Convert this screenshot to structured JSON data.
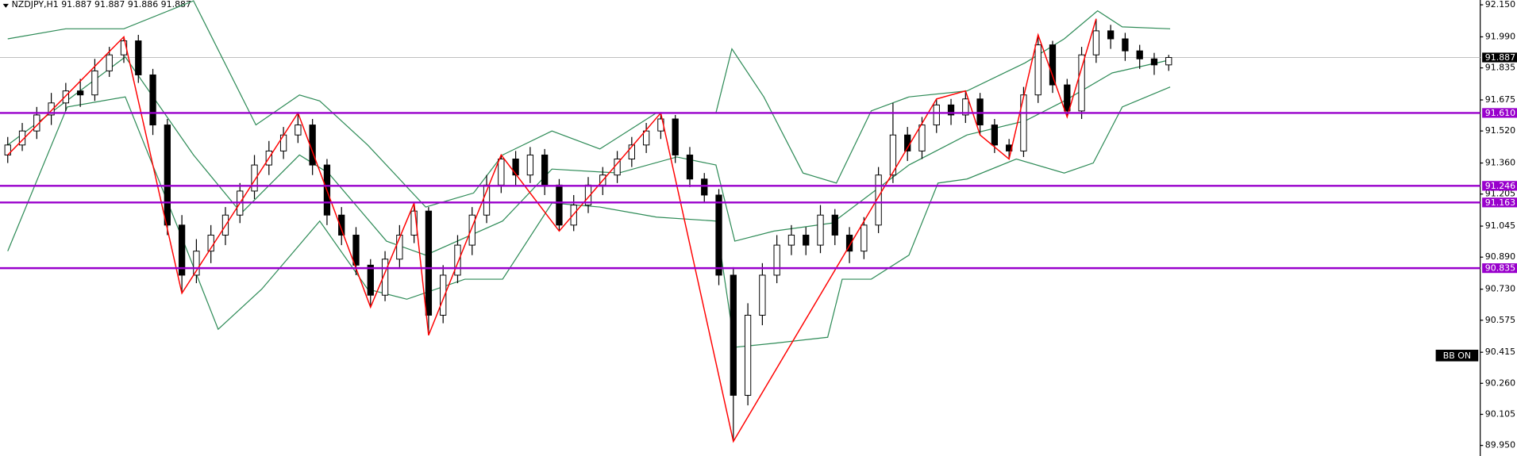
{
  "chart_data": {
    "type": "candlestick",
    "title": "NZDJPY,H1  91.887 91.887 91.886 91.887",
    "button": "BB ON",
    "ylim": [
      89.897,
      92.174
    ],
    "yticks": [
      {
        "value": 92.15,
        "label": "92.150"
      },
      {
        "value": 91.99,
        "label": "91.990"
      },
      {
        "value": 91.835,
        "label": "91.835"
      },
      {
        "value": 91.675,
        "label": "91.675"
      },
      {
        "value": 91.52,
        "label": "91.520"
      },
      {
        "value": 91.36,
        "label": "91.360"
      },
      {
        "value": 91.205,
        "label": "91.205"
      },
      {
        "value": 91.045,
        "label": "91.045"
      },
      {
        "value": 90.89,
        "label": "90.890"
      },
      {
        "value": 90.73,
        "label": "90.730"
      },
      {
        "value": 90.575,
        "label": "90.575"
      },
      {
        "value": 90.415,
        "label": "90.415"
      },
      {
        "value": 90.26,
        "label": "90.260"
      },
      {
        "value": 90.105,
        "label": "90.105"
      },
      {
        "value": 89.95,
        "label": "89.950"
      }
    ],
    "up_color": "#ffffff",
    "down_color": "#000000",
    "open": [
      91.4,
      91.45,
      91.52,
      91.6,
      91.66,
      91.72,
      91.7,
      91.82,
      91.9,
      91.97,
      91.8,
      91.55,
      91.05,
      90.8,
      90.92,
      91.0,
      91.1,
      91.22,
      91.35,
      91.42,
      91.5,
      91.55,
      91.35,
      91.1,
      91.0,
      90.85,
      90.7,
      90.88,
      91.0,
      91.12,
      90.6,
      90.8,
      90.95,
      91.1,
      91.25,
      91.38,
      91.3,
      91.4,
      91.25,
      91.05,
      91.15,
      91.25,
      91.3,
      91.38,
      91.45,
      91.52,
      91.58,
      91.4,
      91.28,
      91.2,
      90.8,
      90.2,
      90.6,
      90.8,
      90.95,
      91.0,
      90.95,
      91.1,
      91.0,
      90.92,
      91.05,
      91.3,
      91.5,
      91.42,
      91.55,
      91.65,
      91.6,
      91.68,
      91.55,
      91.45,
      91.42,
      91.7,
      91.95,
      91.75,
      91.62,
      91.9,
      92.02,
      91.98,
      91.92,
      91.88,
      91.85
    ],
    "high": [
      91.49,
      91.56,
      91.64,
      91.71,
      91.76,
      91.78,
      91.88,
      91.94,
      91.99,
      92.0,
      91.83,
      91.58,
      91.1,
      90.98,
      91.05,
      91.14,
      91.26,
      91.4,
      91.47,
      91.54,
      91.61,
      91.58,
      91.38,
      91.14,
      91.04,
      90.88,
      90.92,
      91.05,
      91.16,
      91.14,
      90.85,
      91.0,
      91.14,
      91.3,
      91.4,
      91.42,
      91.44,
      91.43,
      91.28,
      91.2,
      91.29,
      91.34,
      91.42,
      91.49,
      91.56,
      91.61,
      91.6,
      91.44,
      91.31,
      91.23,
      90.84,
      90.66,
      90.86,
      91.0,
      91.05,
      91.04,
      91.15,
      91.13,
      91.04,
      91.09,
      91.34,
      91.66,
      91.54,
      91.59,
      91.68,
      91.68,
      91.72,
      91.71,
      91.58,
      91.48,
      91.74,
      92.0,
      91.97,
      91.78,
      91.94,
      92.08,
      92.05,
      92.01,
      91.95,
      91.91,
      91.9
    ],
    "low": [
      91.36,
      91.42,
      91.48,
      91.55,
      91.62,
      91.64,
      91.67,
      91.79,
      91.86,
      91.76,
      91.5,
      91.0,
      90.71,
      90.76,
      90.86,
      90.95,
      91.06,
      91.18,
      91.3,
      91.38,
      91.46,
      91.3,
      91.05,
      90.95,
      90.8,
      90.64,
      90.67,
      90.84,
      90.96,
      90.5,
      90.56,
      90.76,
      90.9,
      91.06,
      91.21,
      91.25,
      91.26,
      91.2,
      91.02,
      91.02,
      91.11,
      91.2,
      91.26,
      91.34,
      91.41,
      91.48,
      91.36,
      91.24,
      91.16,
      90.75,
      89.97,
      90.15,
      90.55,
      90.76,
      90.9,
      90.9,
      90.91,
      90.95,
      90.86,
      90.88,
      91.01,
      91.26,
      91.37,
      91.38,
      91.51,
      91.55,
      91.56,
      91.5,
      91.41,
      91.38,
      91.39,
      91.66,
      91.71,
      91.59,
      91.58,
      91.86,
      91.93,
      91.87,
      91.83,
      91.8,
      91.82
    ],
    "close": [
      91.45,
      91.52,
      91.6,
      91.66,
      91.72,
      91.7,
      91.82,
      91.9,
      91.97,
      91.8,
      91.55,
      91.05,
      90.8,
      90.92,
      91.0,
      91.1,
      91.22,
      91.35,
      91.42,
      91.5,
      91.55,
      91.35,
      91.1,
      91.0,
      90.85,
      90.7,
      90.88,
      91.0,
      91.12,
      90.6,
      90.8,
      90.95,
      91.1,
      91.25,
      91.38,
      91.3,
      91.4,
      91.25,
      91.05,
      91.15,
      91.25,
      91.3,
      91.38,
      91.45,
      91.52,
      91.58,
      91.4,
      91.28,
      91.2,
      90.8,
      90.2,
      90.6,
      90.8,
      90.95,
      91.0,
      90.95,
      91.1,
      91.0,
      90.92,
      91.05,
      91.3,
      91.5,
      91.42,
      91.55,
      91.65,
      91.6,
      91.68,
      91.55,
      91.45,
      91.42,
      91.7,
      91.95,
      91.75,
      91.62,
      91.9,
      92.02,
      91.98,
      91.92,
      91.88,
      91.85,
      91.887
    ],
    "bands": [
      {
        "color": "#2e8b57",
        "x": [
          0,
          4,
          8,
          12.8,
          17.1,
          20.1,
          21.5,
          24.8,
          28.8,
          32.1,
          34.1,
          37.5,
          40.8,
          44.7,
          48.8,
          49.9,
          52.1,
          54.8,
          57.1,
          59.5,
          62.1,
          66.1,
          70.1,
          72.8,
          75.1,
          76.8,
          80.1
        ],
        "values": [
          91.98,
          92.03,
          92.03,
          92.17,
          91.55,
          91.7,
          91.67,
          91.45,
          91.14,
          91.21,
          91.4,
          91.52,
          91.43,
          91.61,
          91.61,
          91.93,
          91.69,
          91.31,
          91.26,
          91.62,
          91.69,
          91.72,
          91.86,
          91.98,
          92.12,
          92.04,
          92.03
        ]
      },
      {
        "color": "#2e8b57",
        "x": [
          0,
          8.1,
          12.8,
          16.1,
          20.1,
          22.1,
          26.1,
          28.8,
          34.1,
          37.5,
          42.1,
          46.1,
          48.8,
          50.1,
          52.8,
          56.8,
          62.1,
          66.1,
          70.1,
          72.8,
          76.1,
          80.1
        ],
        "values": [
          91.45,
          91.89,
          91.4,
          91.11,
          91.4,
          91.31,
          90.97,
          90.9,
          91.07,
          91.33,
          91.31,
          91.39,
          91.35,
          90.97,
          91.02,
          91.06,
          91.35,
          91.5,
          91.57,
          91.67,
          91.81,
          91.875
        ]
      },
      {
        "color": "#2e8b57",
        "x": [
          0,
          4.1,
          8.1,
          12.1,
          14.5,
          17.5,
          21.5,
          24.8,
          27.5,
          31.5,
          34.1,
          37.5,
          40.8,
          44.7,
          48.8,
          50.1,
          52.8,
          56.5,
          57.5,
          59.5,
          62.1,
          64.1,
          66.1,
          69.5,
          72.8,
          74.8,
          76.8,
          80.1
        ],
        "values": [
          90.92,
          91.64,
          91.69,
          90.97,
          90.53,
          90.73,
          91.07,
          90.73,
          90.68,
          90.78,
          90.78,
          91.16,
          91.14,
          91.09,
          91.07,
          90.44,
          90.46,
          90.49,
          90.78,
          90.78,
          90.9,
          91.26,
          91.28,
          91.38,
          91.31,
          91.36,
          91.64,
          91.74
        ]
      }
    ],
    "zigzag": {
      "color": "#ff0000",
      "x": [
        0,
        8,
        12,
        20,
        25,
        28,
        29,
        34,
        38,
        45,
        50,
        64,
        66,
        67,
        69,
        71,
        73,
        75
      ],
      "values": [
        91.4,
        91.99,
        90.71,
        91.61,
        90.64,
        91.16,
        90.5,
        91.4,
        91.02,
        91.61,
        89.97,
        91.68,
        91.72,
        91.5,
        91.38,
        92.0,
        91.59,
        92.08
      ]
    },
    "level_color": "#9900cc",
    "levels": [
      {
        "value": 91.61,
        "label": "91.610"
      },
      {
        "value": 91.246,
        "label": "91.246"
      },
      {
        "value": 91.163,
        "label": "91.163"
      },
      {
        "value": 90.835,
        "label": "90.835"
      }
    ],
    "current_price": {
      "value": 91.887,
      "label": "91.887"
    }
  }
}
